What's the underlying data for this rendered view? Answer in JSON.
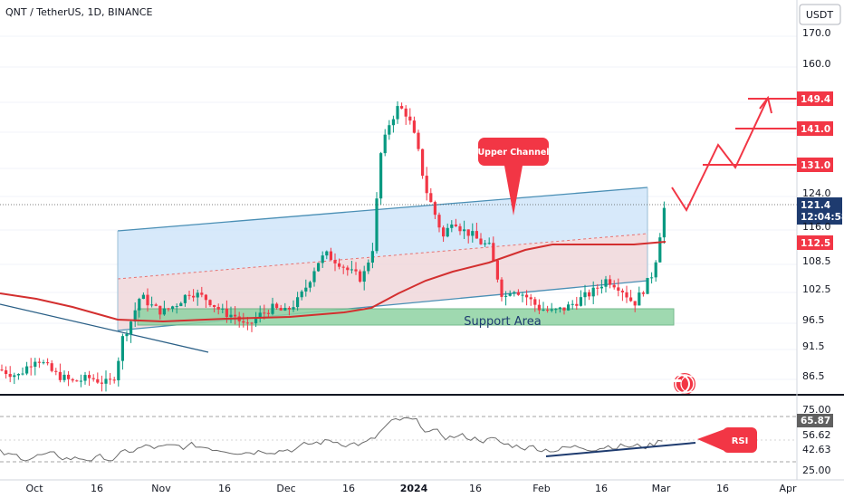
{
  "header": {
    "title": "QNT / TetherUS, 1D, BINANCE",
    "currency": "USDT"
  },
  "price_axis": {
    "ticks": [
      "170.0",
      "160.0",
      "149.4",
      "141.0",
      "131.0",
      "124.0",
      "121.4",
      "12:04:58",
      "116.0",
      "112.5",
      "108.5",
      "102.5",
      "96.5",
      "91.5",
      "86.5"
    ]
  },
  "price_labels": {
    "target3": "149.4",
    "target2": "141.0",
    "target1": "131.0",
    "current": "121.4",
    "countdown": "12:04:58",
    "ma": "112.5"
  },
  "rsi_axis": {
    "ticks": [
      "75.00",
      "65.87",
      "56.62",
      "42.63",
      "25.00"
    ],
    "current": "65.87"
  },
  "time_axis": {
    "labels": [
      "Oct",
      "16",
      "Nov",
      "16",
      "Dec",
      "16",
      "2024",
      "16",
      "Feb",
      "16",
      "Mar",
      "16",
      "Apr"
    ]
  },
  "annotations": {
    "upper_channel": "Upper Channel",
    "support_area": "Support Area",
    "rsi": "RSI"
  },
  "colors": {
    "up": "#089981",
    "down": "#f23645",
    "channel_line": "#4a8fb5",
    "ma": "#d32f2f",
    "support_fill": "#8fd3a3",
    "label_red": "#f23645",
    "axis_text": "#131722"
  },
  "chart_data": {
    "type": "candlestick",
    "title": "QNT / TetherUS, 1D, BINANCE",
    "y_unit": "USDT",
    "x_range": [
      "2023-09-26",
      "2024-04-03"
    ],
    "ylim": [
      82,
      176
    ],
    "current_price": 121.4,
    "ma_value": 112.5,
    "targets": [
      131.0,
      141.0,
      149.4
    ],
    "support_zone": [
      95.5,
      98.5
    ],
    "rsi": {
      "current": 65.87,
      "levels": [
        75.0,
        56.62,
        42.63,
        25.0
      ]
    }
  }
}
